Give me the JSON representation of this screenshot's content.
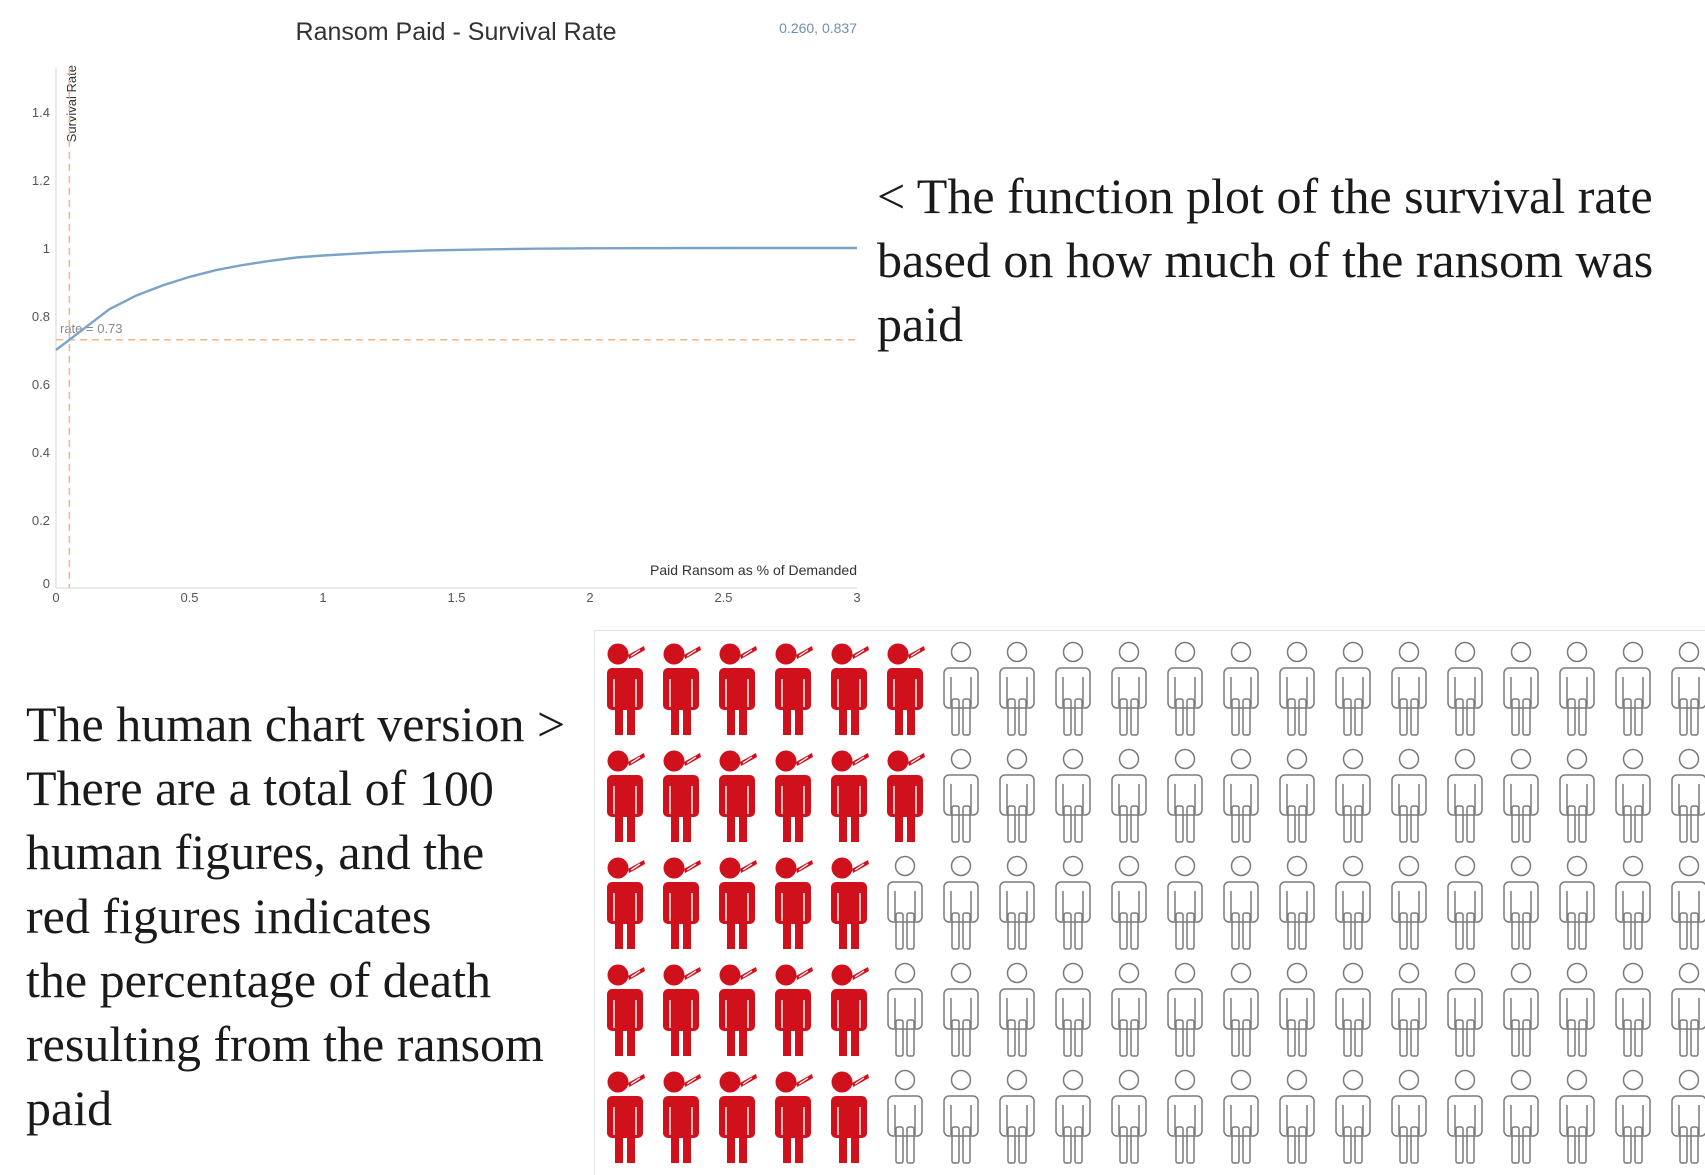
{
  "chart_data": [
    {
      "type": "line",
      "title": "Ransom Paid - Survival Rate",
      "readout": "0.260, 0.837",
      "xlabel": "Paid Ransom as % of Demanded",
      "ylabel": "Survival Rate",
      "xlim": [
        0,
        3
      ],
      "ylim": [
        0,
        1.5
      ],
      "x_ticks": [
        "0",
        "0.5",
        "1",
        "1.5",
        "2",
        "2.5",
        "3"
      ],
      "y_ticks": [
        "0",
        "0.2",
        "0.4",
        "0.6",
        "0.8",
        "1",
        "1.2",
        "1.4"
      ],
      "series": [
        {
          "color": "#7aa3c8",
          "x": [
            0,
            0.1,
            0.2,
            0.3,
            0.4,
            0.5,
            0.6,
            0.7,
            0.8,
            0.9,
            1.0,
            1.2,
            1.4,
            1.6,
            1.8,
            2.0,
            2.5,
            3.0
          ],
          "y": [
            0.7,
            0.76,
            0.82,
            0.86,
            0.89,
            0.915,
            0.935,
            0.95,
            0.962,
            0.972,
            0.978,
            0.987,
            0.993,
            0.996,
            0.998,
            0.999,
            1.0,
            1.0
          ]
        }
      ],
      "reference_lines": [
        {
          "axis": "y",
          "value": 0.73,
          "label": "rate = 0.73",
          "color": "#f5b48c"
        },
        {
          "axis": "x",
          "value": 0.05,
          "color": "#f5b48c"
        }
      ],
      "grid": false
    },
    {
      "type": "pictograph",
      "total": 100,
      "rows": 5,
      "columns": 20,
      "red_per_row": [
        6,
        6,
        5,
        5,
        5
      ],
      "filled_color": "#d0101a",
      "empty_color": "#7a7a7a"
    }
  ],
  "captions": {
    "top": "< The function plot of the survival rate based on how much of the ransom was paid",
    "bottom_lines": [
      "The human chart version >",
      "There are a total of 100",
      "human figures, and the",
      "red figures indicates",
      "the percentage of death",
      "resulting from the ransom",
      "paid"
    ]
  }
}
